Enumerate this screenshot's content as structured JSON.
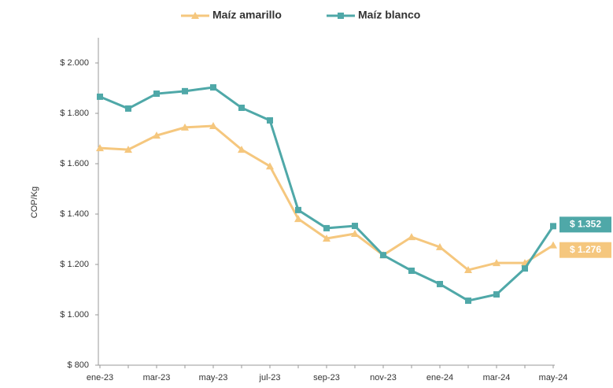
{
  "chart_data": {
    "type": "line",
    "y_label": "COP/Kg",
    "categories": [
      "ene-23",
      null,
      "mar-23",
      null,
      "may-23",
      null,
      "jul-23",
      null,
      "sep-23",
      null,
      "nov-23",
      null,
      "ene-24",
      null,
      "mar-24",
      null,
      "may-24"
    ],
    "series": [
      {
        "name": "Maíz amarillo",
        "color": "#f5c77e",
        "marker": "triangle",
        "values": [
          1662,
          1656,
          1712,
          1744,
          1750,
          1656,
          1590,
          1381,
          1303,
          1322,
          1237,
          1309,
          1269,
          1178,
          1206,
          1206,
          1276
        ],
        "value_labels": [
          null,
          null,
          null,
          null,
          null,
          null,
          null,
          null,
          null,
          null,
          null,
          null,
          null,
          null,
          null,
          null,
          "$ 1.276"
        ]
      },
      {
        "name": "Maíz blanco",
        "color": "#4fa8a8",
        "marker": "square",
        "values": [
          1866,
          1819,
          1878,
          1888,
          1903,
          1822,
          1772,
          1416,
          1344,
          1353,
          1237,
          1175,
          1122,
          1056,
          1081,
          1184,
          1352
        ],
        "value_labels": [
          null,
          null,
          null,
          null,
          null,
          null,
          null,
          null,
          null,
          null,
          null,
          null,
          null,
          null,
          null,
          null,
          "$ 1.352"
        ]
      }
    ],
    "ylim": [
      800,
      2100
    ],
    "yticks": [
      {
        "value": 800,
        "label": "$ 800"
      },
      {
        "value": 1000,
        "label": "$ 1.000"
      },
      {
        "value": 1200,
        "label": "$ 1.200"
      },
      {
        "value": 1400,
        "label": "$ 1.400"
      },
      {
        "value": 1600,
        "label": "$ 1.600"
      },
      {
        "value": 1800,
        "label": "$ 1.800"
      },
      {
        "value": 2000,
        "label": "$ 2.000"
      }
    ],
    "grid": false,
    "legend": "top"
  }
}
